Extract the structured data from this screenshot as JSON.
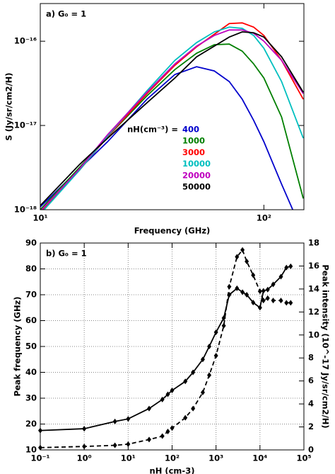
{
  "chart_data": [
    {
      "type": "line",
      "annotation": "a) G₀ = 1",
      "xlabel": "Frequency (GHz)",
      "ylabel": "S (Jy/sr/cm2/H)",
      "xscale": "log",
      "yscale": "log",
      "grid": false,
      "xlim": [
        10,
        151
      ],
      "ylim": [
        1e-18,
        2.8e-16
      ],
      "xticks": [
        {
          "value": 10,
          "label": "10¹"
        },
        {
          "value": 100,
          "label": "10²"
        }
      ],
      "yticks": [
        {
          "value": 1e-18,
          "label": "10⁻¹⁸"
        },
        {
          "value": 1e-17,
          "label": "10⁻¹⁷"
        },
        {
          "value": 1e-16,
          "label": "10⁻¹⁶"
        }
      ],
      "legend_title": "nH(cm⁻³) =",
      "x": [
        10,
        15,
        20,
        30,
        40,
        50,
        60,
        70,
        80,
        90,
        100,
        120,
        150
      ],
      "series": [
        {
          "name": "400",
          "color": "#0000cc",
          "values": [
            1.08e-18,
            3.07e-18,
            6.41e-18,
            2.05e-17,
            4.03e-17,
            4.98e-17,
            4.44e-17,
            3.32e-17,
            2.05e-17,
            1.15e-17,
            6.41e-18,
            2.01e-18,
            5.18e-19
          ]
        },
        {
          "name": "1000",
          "color": "#007f00",
          "values": [
            1e-18,
            3.19e-18,
            7.34e-18,
            2.25e-17,
            4.61e-17,
            7.19e-17,
            9.08e-17,
            9.25e-17,
            7.62e-17,
            5.38e-17,
            3.66e-17,
            1.26e-17,
            1.36e-18
          ]
        },
        {
          "name": "3000",
          "color": "#ff0000",
          "values": [
            9.2e-19,
            2.96e-18,
            7.34e-18,
            2.39e-17,
            5.18e-17,
            8.57e-17,
            1.21e-16,
            1.62e-16,
            1.65e-16,
            1.47e-16,
            1.17e-16,
            5.93e-17,
            2.05e-17
          ]
        },
        {
          "name": "10000",
          "color": "#00bfbf",
          "values": [
            8.9e-19,
            2.96e-18,
            7.48e-18,
            2.58e-17,
            5.93e-17,
            9.62e-17,
            1.29e-16,
            1.47e-16,
            1.42e-16,
            1.17e-16,
            8.24e-17,
            3.32e-17,
            7.06e-18
          ]
        },
        {
          "name": "20000",
          "color": "#bf00bf",
          "values": [
            9.6e-19,
            3.07e-18,
            7.78e-18,
            2.48e-17,
            5.38e-17,
            8.74e-17,
            1.17e-16,
            1.36e-16,
            1.36e-16,
            1.24e-16,
            1e-16,
            5.93e-17,
            2.39e-17
          ]
        },
        {
          "name": "50000",
          "color": "#000000",
          "values": [
            1.12e-18,
            3.45e-18,
            7.06e-18,
            1.86e-17,
            3.66e-17,
            6.53e-17,
            8.74e-17,
            1.12e-16,
            1.29e-16,
            1.26e-16,
            1.12e-16,
            6.53e-17,
            2.48e-17
          ]
        }
      ]
    },
    {
      "type": "line",
      "annotation": "b) G₀ = 1",
      "xlabel": "nH (cm-3)",
      "ylabel": "Peak frequency (GHz)",
      "y2label": "Peak intensity (10^-17 Jy/sr/cm2/H)",
      "xscale": "log",
      "grid": true,
      "marker": "diamond",
      "xlim": [
        0.1,
        100000
      ],
      "ylim": [
        10,
        90
      ],
      "y2lim": [
        0,
        18
      ],
      "xticks": [
        {
          "value": 0.1,
          "label": "10⁻¹"
        },
        {
          "value": 1,
          "label": "10⁰"
        },
        {
          "value": 10,
          "label": "10¹"
        },
        {
          "value": 100,
          "label": "10²"
        },
        {
          "value": 1000,
          "label": "10³"
        },
        {
          "value": 10000,
          "label": "10⁴"
        },
        {
          "value": 100000,
          "label": "10⁵"
        }
      ],
      "yticks": [
        10,
        20,
        30,
        40,
        50,
        60,
        70,
        80,
        90
      ],
      "y2ticks": [
        0,
        2,
        4,
        6,
        8,
        10,
        12,
        14,
        16,
        18
      ],
      "x": [
        0.1,
        1,
        5,
        10,
        30,
        60,
        80,
        100,
        200,
        300,
        500,
        700,
        1000,
        1500,
        2000,
        3000,
        4000,
        5000,
        7000,
        10000,
        12000,
        15000,
        20000,
        30000,
        40000,
        50000
      ],
      "series": [
        {
          "axis": "y",
          "color": "#000000",
          "linestyle": "solid",
          "values": [
            17.5,
            18.2,
            21,
            22,
            26,
            29.5,
            31.5,
            33,
            36.5,
            40,
            45,
            50,
            55.5,
            61,
            70,
            72.5,
            71,
            70,
            67,
            65,
            71.5,
            72,
            74,
            77,
            80.5,
            81
          ]
        },
        {
          "axis": "y2",
          "color": "#000000",
          "linestyle": "dashed",
          "values": [
            0.2,
            0.3,
            0.4,
            0.5,
            0.9,
            1.2,
            1.6,
            1.9,
            2.8,
            3.6,
            5,
            6.5,
            8.2,
            10.8,
            14.2,
            16.8,
            17.4,
            16.4,
            15.2,
            13.8,
            13,
            13.2,
            13,
            13,
            12.8,
            12.8
          ]
        }
      ]
    }
  ]
}
